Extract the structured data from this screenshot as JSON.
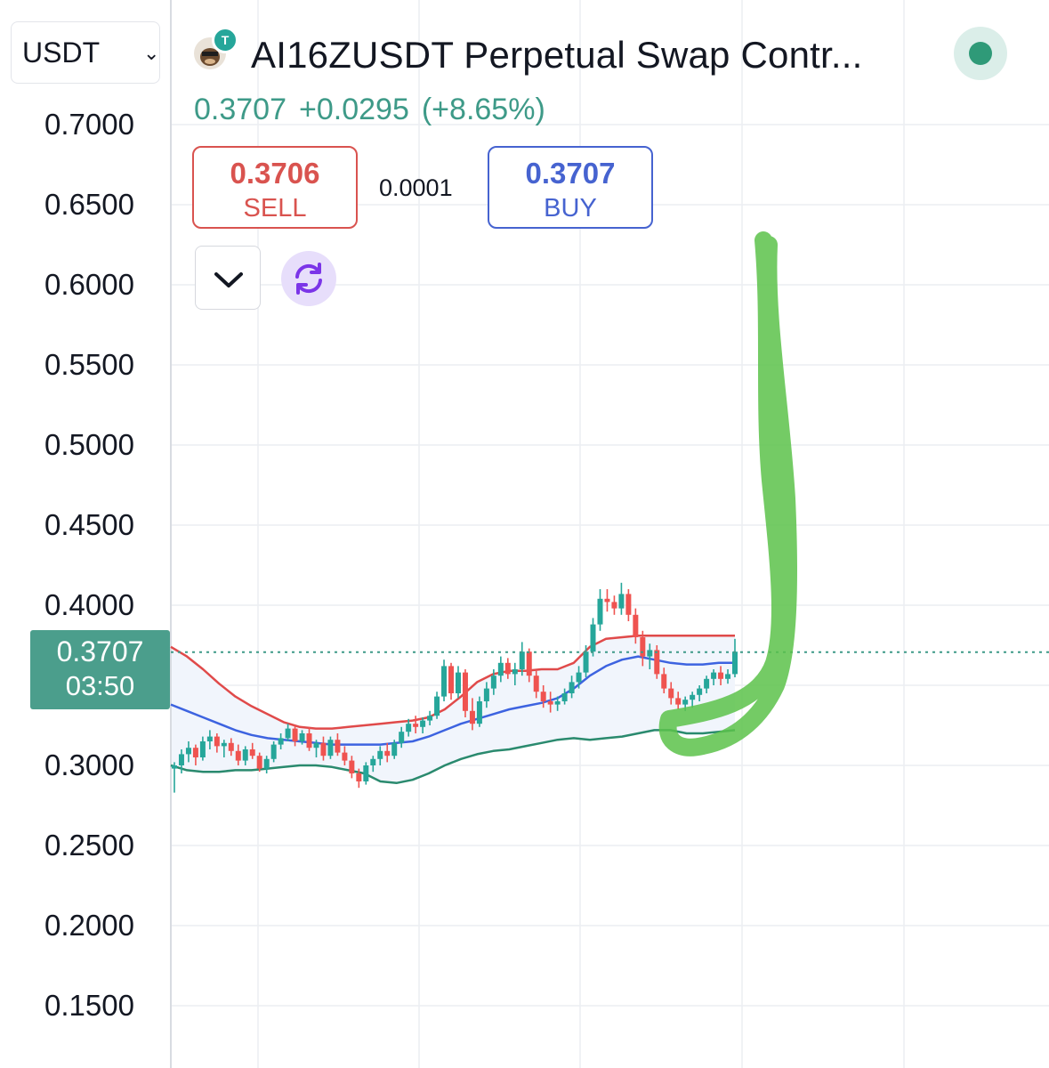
{
  "header": {
    "quote_currency": "USDT",
    "symbol_title": "AI16ZUSDT Perpetual Swap Contr...",
    "last_price": "0.3707",
    "change_abs": "+0.0295",
    "change_pct": "(+8.65%)",
    "status": "live"
  },
  "trade": {
    "sell_price": "0.3706",
    "sell_label": "SELL",
    "spread": "0.0001",
    "buy_price": "0.3707",
    "buy_label": "BUY"
  },
  "price_tag": {
    "price": "0.3707",
    "countdown": "03:50"
  },
  "colors": {
    "up": "#26a69a",
    "down": "#ef5350",
    "upper_band": "#e04a4a",
    "middle_band": "#3d63e0",
    "lower_band": "#2a8a6e",
    "band_fill": "#f1f5fc",
    "annotation": "#5cc24a"
  },
  "icons": [
    "chevron-down-icon",
    "ai16z-logo-icon",
    "tether-badge-icon",
    "status-dot-icon",
    "refresh-icon"
  ],
  "chart_data": {
    "type": "candlestick",
    "y_ticks": [
      "0.7000",
      "0.6500",
      "0.6000",
      "0.5500",
      "0.5000",
      "0.4500",
      "0.4000",
      "0.3000",
      "0.2500",
      "0.2000",
      "0.1500"
    ],
    "ylim": [
      0.12,
      0.72
    ],
    "last_price_line": 0.3707,
    "grid": true,
    "candles_ohlc": [
      [
        0.298,
        0.302,
        0.283,
        0.3
      ],
      [
        0.3,
        0.31,
        0.295,
        0.307
      ],
      [
        0.307,
        0.315,
        0.302,
        0.311
      ],
      [
        0.311,
        0.313,
        0.3,
        0.305
      ],
      [
        0.305,
        0.318,
        0.303,
        0.315
      ],
      [
        0.315,
        0.322,
        0.31,
        0.318
      ],
      [
        0.318,
        0.32,
        0.308,
        0.312
      ],
      [
        0.312,
        0.316,
        0.305,
        0.314
      ],
      [
        0.314,
        0.317,
        0.306,
        0.309
      ],
      [
        0.309,
        0.313,
        0.3,
        0.303
      ],
      [
        0.303,
        0.312,
        0.3,
        0.31
      ],
      [
        0.31,
        0.314,
        0.304,
        0.306
      ],
      [
        0.306,
        0.308,
        0.296,
        0.298
      ],
      [
        0.298,
        0.306,
        0.295,
        0.304
      ],
      [
        0.304,
        0.315,
        0.302,
        0.313
      ],
      [
        0.313,
        0.32,
        0.31,
        0.317
      ],
      [
        0.317,
        0.326,
        0.315,
        0.323
      ],
      [
        0.323,
        0.325,
        0.312,
        0.315
      ],
      [
        0.315,
        0.322,
        0.313,
        0.32
      ],
      [
        0.32,
        0.324,
        0.309,
        0.311
      ],
      [
        0.311,
        0.316,
        0.305,
        0.314
      ],
      [
        0.314,
        0.318,
        0.303,
        0.306
      ],
      [
        0.306,
        0.318,
        0.304,
        0.316
      ],
      [
        0.316,
        0.32,
        0.306,
        0.308
      ],
      [
        0.308,
        0.312,
        0.3,
        0.303
      ],
      [
        0.303,
        0.306,
        0.292,
        0.295
      ],
      [
        0.295,
        0.298,
        0.286,
        0.29
      ],
      [
        0.29,
        0.302,
        0.288,
        0.3
      ],
      [
        0.3,
        0.306,
        0.296,
        0.304
      ],
      [
        0.304,
        0.312,
        0.3,
        0.309
      ],
      [
        0.309,
        0.314,
        0.302,
        0.306
      ],
      [
        0.306,
        0.316,
        0.304,
        0.314
      ],
      [
        0.314,
        0.324,
        0.311,
        0.321
      ],
      [
        0.321,
        0.329,
        0.318,
        0.326
      ],
      [
        0.326,
        0.331,
        0.32,
        0.324
      ],
      [
        0.324,
        0.33,
        0.32,
        0.328
      ],
      [
        0.328,
        0.334,
        0.325,
        0.331
      ],
      [
        0.331,
        0.346,
        0.329,
        0.343
      ],
      [
        0.343,
        0.366,
        0.34,
        0.362
      ],
      [
        0.362,
        0.364,
        0.341,
        0.345
      ],
      [
        0.345,
        0.362,
        0.342,
        0.358
      ],
      [
        0.358,
        0.36,
        0.33,
        0.334
      ],
      [
        0.334,
        0.342,
        0.322,
        0.326
      ],
      [
        0.326,
        0.343,
        0.324,
        0.34
      ],
      [
        0.34,
        0.352,
        0.336,
        0.348
      ],
      [
        0.348,
        0.36,
        0.344,
        0.356
      ],
      [
        0.356,
        0.368,
        0.352,
        0.364
      ],
      [
        0.364,
        0.367,
        0.354,
        0.357
      ],
      [
        0.357,
        0.364,
        0.35,
        0.36
      ],
      [
        0.36,
        0.377,
        0.356,
        0.371
      ],
      [
        0.371,
        0.373,
        0.352,
        0.356
      ],
      [
        0.356,
        0.359,
        0.342,
        0.346
      ],
      [
        0.346,
        0.35,
        0.336,
        0.34
      ],
      [
        0.34,
        0.346,
        0.333,
        0.338
      ],
      [
        0.338,
        0.343,
        0.334,
        0.34
      ],
      [
        0.34,
        0.348,
        0.338,
        0.345
      ],
      [
        0.345,
        0.356,
        0.342,
        0.352
      ],
      [
        0.352,
        0.362,
        0.348,
        0.358
      ],
      [
        0.358,
        0.375,
        0.355,
        0.371
      ],
      [
        0.371,
        0.392,
        0.368,
        0.388
      ],
      [
        0.388,
        0.41,
        0.384,
        0.404
      ],
      [
        0.404,
        0.41,
        0.396,
        0.402
      ],
      [
        0.402,
        0.406,
        0.394,
        0.398
      ],
      [
        0.398,
        0.414,
        0.394,
        0.407
      ],
      [
        0.407,
        0.41,
        0.39,
        0.394
      ],
      [
        0.394,
        0.398,
        0.376,
        0.38
      ],
      [
        0.38,
        0.384,
        0.362,
        0.368
      ],
      [
        0.368,
        0.376,
        0.36,
        0.372
      ],
      [
        0.372,
        0.375,
        0.354,
        0.357
      ],
      [
        0.357,
        0.361,
        0.345,
        0.348
      ],
      [
        0.348,
        0.352,
        0.338,
        0.342
      ],
      [
        0.342,
        0.346,
        0.335,
        0.338
      ],
      [
        0.338,
        0.343,
        0.334,
        0.341
      ],
      [
        0.341,
        0.346,
        0.336,
        0.344
      ],
      [
        0.344,
        0.35,
        0.34,
        0.348
      ],
      [
        0.348,
        0.356,
        0.345,
        0.354
      ],
      [
        0.354,
        0.36,
        0.35,
        0.358
      ],
      [
        0.358,
        0.362,
        0.35,
        0.354
      ],
      [
        0.354,
        0.36,
        0.351,
        0.357
      ],
      [
        0.357,
        0.379,
        0.355,
        0.371
      ]
    ],
    "bollinger": {
      "upper": [
        0.374,
        0.368,
        0.36,
        0.351,
        0.343,
        0.337,
        0.332,
        0.327,
        0.324,
        0.323,
        0.323,
        0.324,
        0.325,
        0.326,
        0.327,
        0.328,
        0.33,
        0.335,
        0.343,
        0.352,
        0.357,
        0.359,
        0.359,
        0.36,
        0.36,
        0.364,
        0.374,
        0.379,
        0.38,
        0.381,
        0.381,
        0.381,
        0.381,
        0.381,
        0.381,
        0.381
      ],
      "middle": [
        0.338,
        0.334,
        0.33,
        0.326,
        0.322,
        0.319,
        0.317,
        0.316,
        0.315,
        0.314,
        0.313,
        0.313,
        0.313,
        0.313,
        0.314,
        0.315,
        0.318,
        0.322,
        0.326,
        0.329,
        0.332,
        0.335,
        0.337,
        0.339,
        0.342,
        0.348,
        0.356,
        0.362,
        0.366,
        0.368,
        0.366,
        0.364,
        0.363,
        0.363,
        0.364,
        0.364
      ],
      "lower": [
        0.3,
        0.297,
        0.296,
        0.296,
        0.297,
        0.297,
        0.298,
        0.299,
        0.3,
        0.3,
        0.299,
        0.297,
        0.295,
        0.29,
        0.289,
        0.291,
        0.295,
        0.3,
        0.304,
        0.307,
        0.309,
        0.31,
        0.312,
        0.314,
        0.316,
        0.317,
        0.316,
        0.317,
        0.318,
        0.32,
        0.322,
        0.322,
        0.32,
        0.32,
        0.321,
        0.322
      ]
    }
  }
}
